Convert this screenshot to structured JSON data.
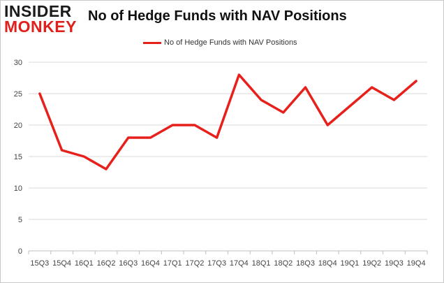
{
  "logo": {
    "top": "INSIDER",
    "bottom": "MONKEY"
  },
  "chart_data": {
    "type": "line",
    "title": "No of Hedge Funds with NAV Positions",
    "xlabel": "",
    "ylabel": "",
    "categories": [
      "15Q3",
      "15Q4",
      "16Q1",
      "16Q2",
      "16Q3",
      "16Q4",
      "17Q1",
      "17Q2",
      "17Q3",
      "17Q4",
      "18Q1",
      "18Q2",
      "18Q3",
      "18Q4",
      "19Q1",
      "19Q2",
      "19Q3",
      "19Q4"
    ],
    "series": [
      {
        "name": "No of Hedge Funds with NAV Positions",
        "values": [
          25,
          16,
          15,
          13,
          18,
          18,
          20,
          20,
          18,
          28,
          24,
          22,
          26,
          20,
          23,
          26,
          24,
          27
        ]
      }
    ],
    "ylim": [
      0,
      30
    ],
    "yticks": [
      0,
      5,
      10,
      15,
      20,
      25,
      30
    ],
    "grid": true,
    "legend": "top-center",
    "colors": {
      "line": "#e8201c",
      "grid": "#d9d9d9",
      "axis": "#bfbfbf"
    }
  }
}
